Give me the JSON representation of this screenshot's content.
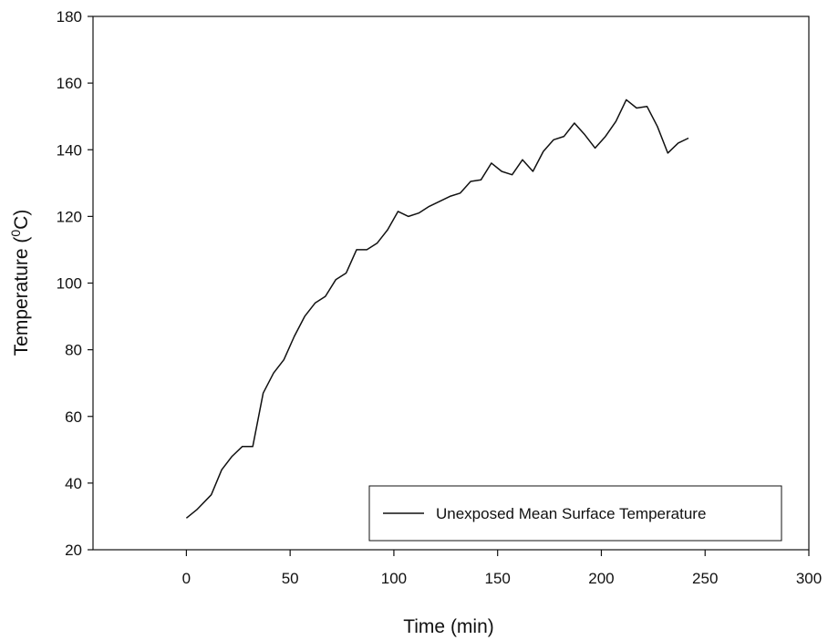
{
  "chart_data": {
    "type": "line",
    "title": "",
    "xlabel": "Time (min)",
    "ylabel_main": "Temperature (",
    "ylabel_sup": "0",
    "ylabel_tail": "C)",
    "xlim": [
      -45,
      300
    ],
    "ylim": [
      20,
      180
    ],
    "xticks": [
      0,
      50,
      100,
      150,
      200,
      250,
      300
    ],
    "yticks": [
      20,
      40,
      60,
      80,
      100,
      120,
      140,
      160,
      180
    ],
    "grid": false,
    "legend_position": "bottom-right",
    "line_color": "#111111",
    "series": [
      {
        "name": "Unexposed Mean Surface Temperature",
        "x": [
          0,
          5,
          12,
          17,
          22,
          27,
          32,
          37,
          42,
          47,
          52,
          57,
          62,
          67,
          72,
          77,
          82,
          87,
          92,
          97,
          102,
          107,
          112,
          117,
          122,
          127,
          132,
          137,
          142,
          147,
          152,
          157,
          162,
          167,
          172,
          177,
          182,
          187,
          192,
          197,
          202,
          207,
          212,
          217,
          222,
          227,
          232,
          237,
          242
        ],
        "y": [
          29.5,
          32,
          36.5,
          44,
          48,
          51,
          51,
          67,
          73,
          77,
          84,
          90,
          94,
          96,
          101,
          103,
          110,
          110,
          112,
          116,
          121.5,
          120,
          121,
          123,
          124.5,
          126,
          127,
          130.5,
          131,
          136,
          133.5,
          132.5,
          137,
          133.5,
          139.5,
          143,
          144,
          148,
          144.5,
          140.5,
          144,
          148.5,
          155,
          152.5,
          153,
          147,
          139,
          142,
          143.5
        ]
      }
    ]
  }
}
